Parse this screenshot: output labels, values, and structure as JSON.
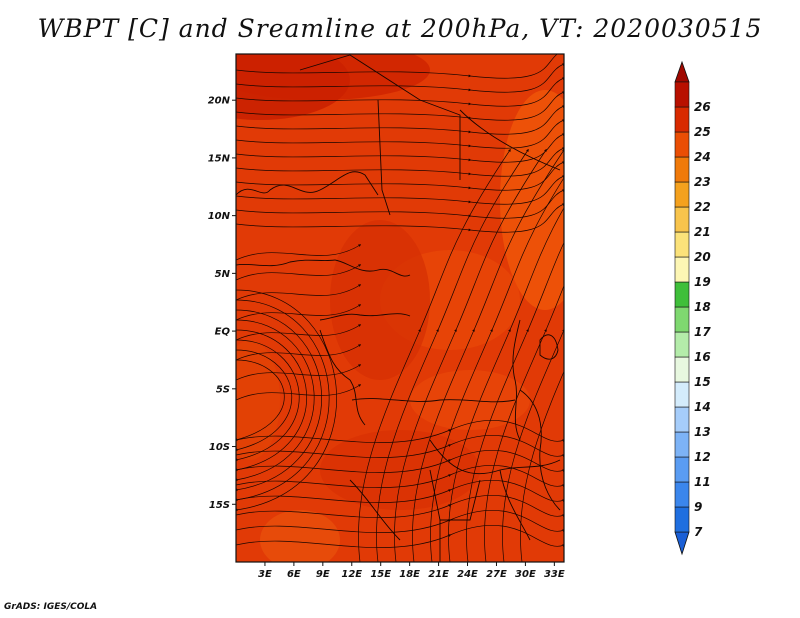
{
  "title": "WBPT [C] and Sreamline at 200hPa, VT: 2020030515",
  "credit": "GrADS: IGES/COLA",
  "map": {
    "lon_range": [
      0,
      34
    ],
    "lat_range": [
      -20,
      24
    ],
    "lat_ticks": [
      {
        "lat": 20,
        "label": "20N"
      },
      {
        "lat": 15,
        "label": "15N"
      },
      {
        "lat": 10,
        "label": "10N"
      },
      {
        "lat": 5,
        "label": "5N"
      },
      {
        "lat": 0,
        "label": "EQ"
      },
      {
        "lat": -5,
        "label": "5S"
      },
      {
        "lat": -10,
        "label": "10S"
      },
      {
        "lat": -15,
        "label": "15S"
      }
    ],
    "lon_ticks": [
      {
        "lon": 3,
        "label": "3E"
      },
      {
        "lon": 6,
        "label": "6E"
      },
      {
        "lon": 9,
        "label": "9E"
      },
      {
        "lon": 12,
        "label": "12E"
      },
      {
        "lon": 15,
        "label": "15E"
      },
      {
        "lon": 18,
        "label": "18E"
      },
      {
        "lon": 21,
        "label": "21E"
      },
      {
        "lon": 24,
        "label": "24E"
      },
      {
        "lon": 27,
        "label": "27E"
      },
      {
        "lon": 30,
        "label": "30E"
      },
      {
        "lon": 33,
        "label": "33E"
      }
    ]
  },
  "colorbar": {
    "labels": [
      "7",
      "9",
      "11",
      "12",
      "13",
      "14",
      "15",
      "16",
      "17",
      "18",
      "19",
      "20",
      "21",
      "22",
      "23",
      "24",
      "25",
      "26"
    ],
    "colors": [
      "#1f6fe0",
      "#3b86ec",
      "#5a9cf2",
      "#7db3f6",
      "#a6cdfa",
      "#d4ecfc",
      "#e8f8e0",
      "#b4ecaa",
      "#7fd870",
      "#3fbf3a",
      "#fdf6b4",
      "#fbe27a",
      "#f8c44c",
      "#f4a11e",
      "#f07a0a",
      "#ea4e04",
      "#d82a00",
      "#b81000"
    ],
    "top_color": "#a00800",
    "bottom_color": "#1a5fd6"
  }
}
